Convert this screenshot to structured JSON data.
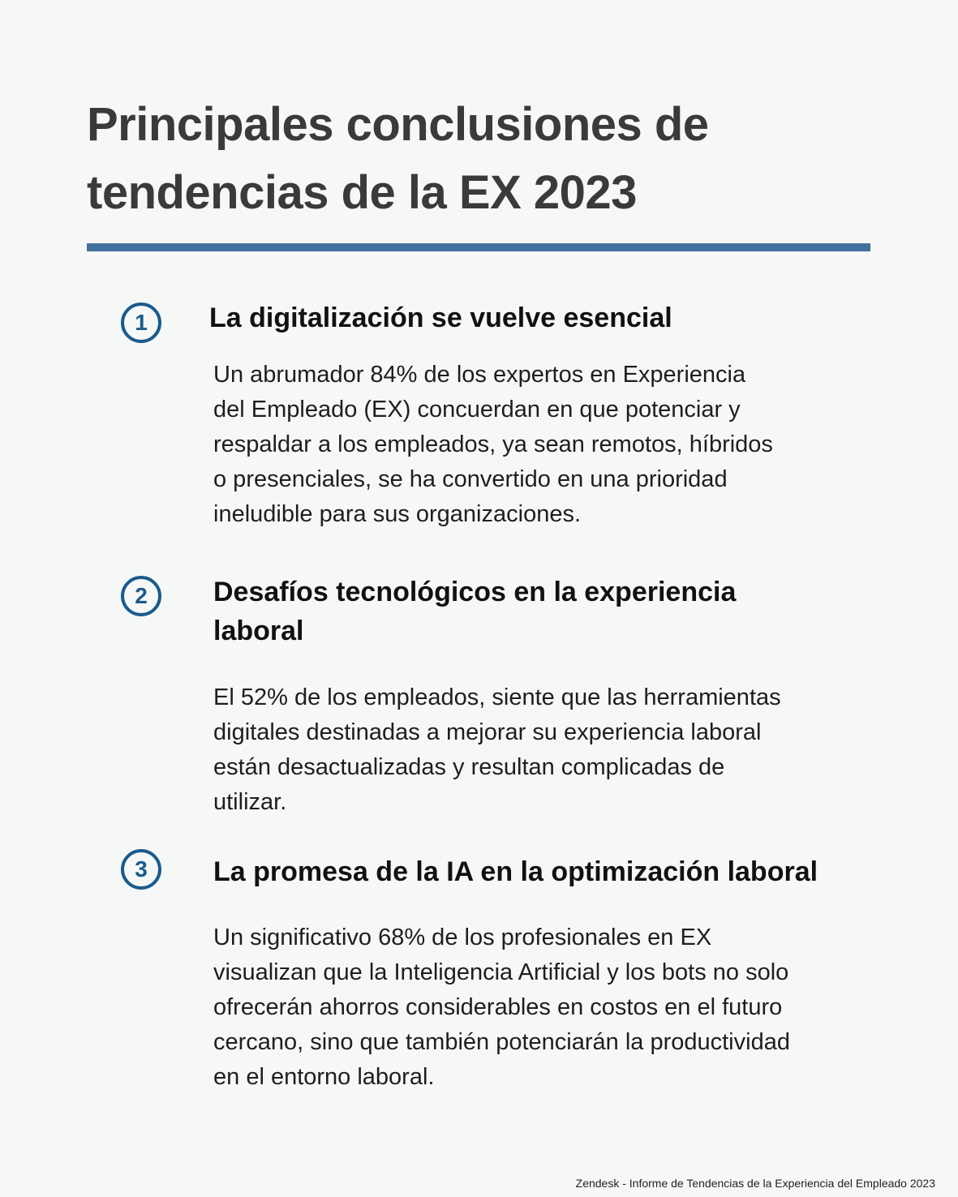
{
  "title_lines": [
    "Principales conclusiones de",
    "tendencias de la EX 2023"
  ],
  "accent_color": "#4470a0",
  "number_color": "#1b5b8c",
  "items": [
    {
      "number": "1",
      "heading": [
        "La digitalización se vuelve esencial"
      ],
      "body": [
        "Un abrumador 84% de los expertos en Experiencia",
        "del Empleado (EX) concuerdan en que potenciar y",
        "respaldar a los empleados, ya sean remotos, híbridos",
        "o presenciales, se ha convertido en una prioridad",
        "ineludible para sus organizaciones."
      ]
    },
    {
      "number": "2",
      "heading": [
        "Desafíos tecnológicos en la experiencia",
        "laboral"
      ],
      "body": [
        "El 52% de los empleados, siente que las herramientas",
        "digitales destinadas a mejorar su experiencia laboral",
        "están desactualizadas y resultan complicadas de",
        "utilizar."
      ]
    },
    {
      "number": "3",
      "heading": [
        "La promesa de la IA en la optimización laboral"
      ],
      "body": [
        "Un significativo 68% de los profesionales en EX",
        "visualizan que la Inteligencia Artificial y los bots no solo",
        "ofrecerán ahorros considerables en costos en el futuro",
        "cercano, sino que también potenciarán la productividad",
        "en el entorno laboral."
      ]
    }
  ],
  "footer": "Zendesk - Informe de Tendencias de la Experiencia del Empleado 2023"
}
